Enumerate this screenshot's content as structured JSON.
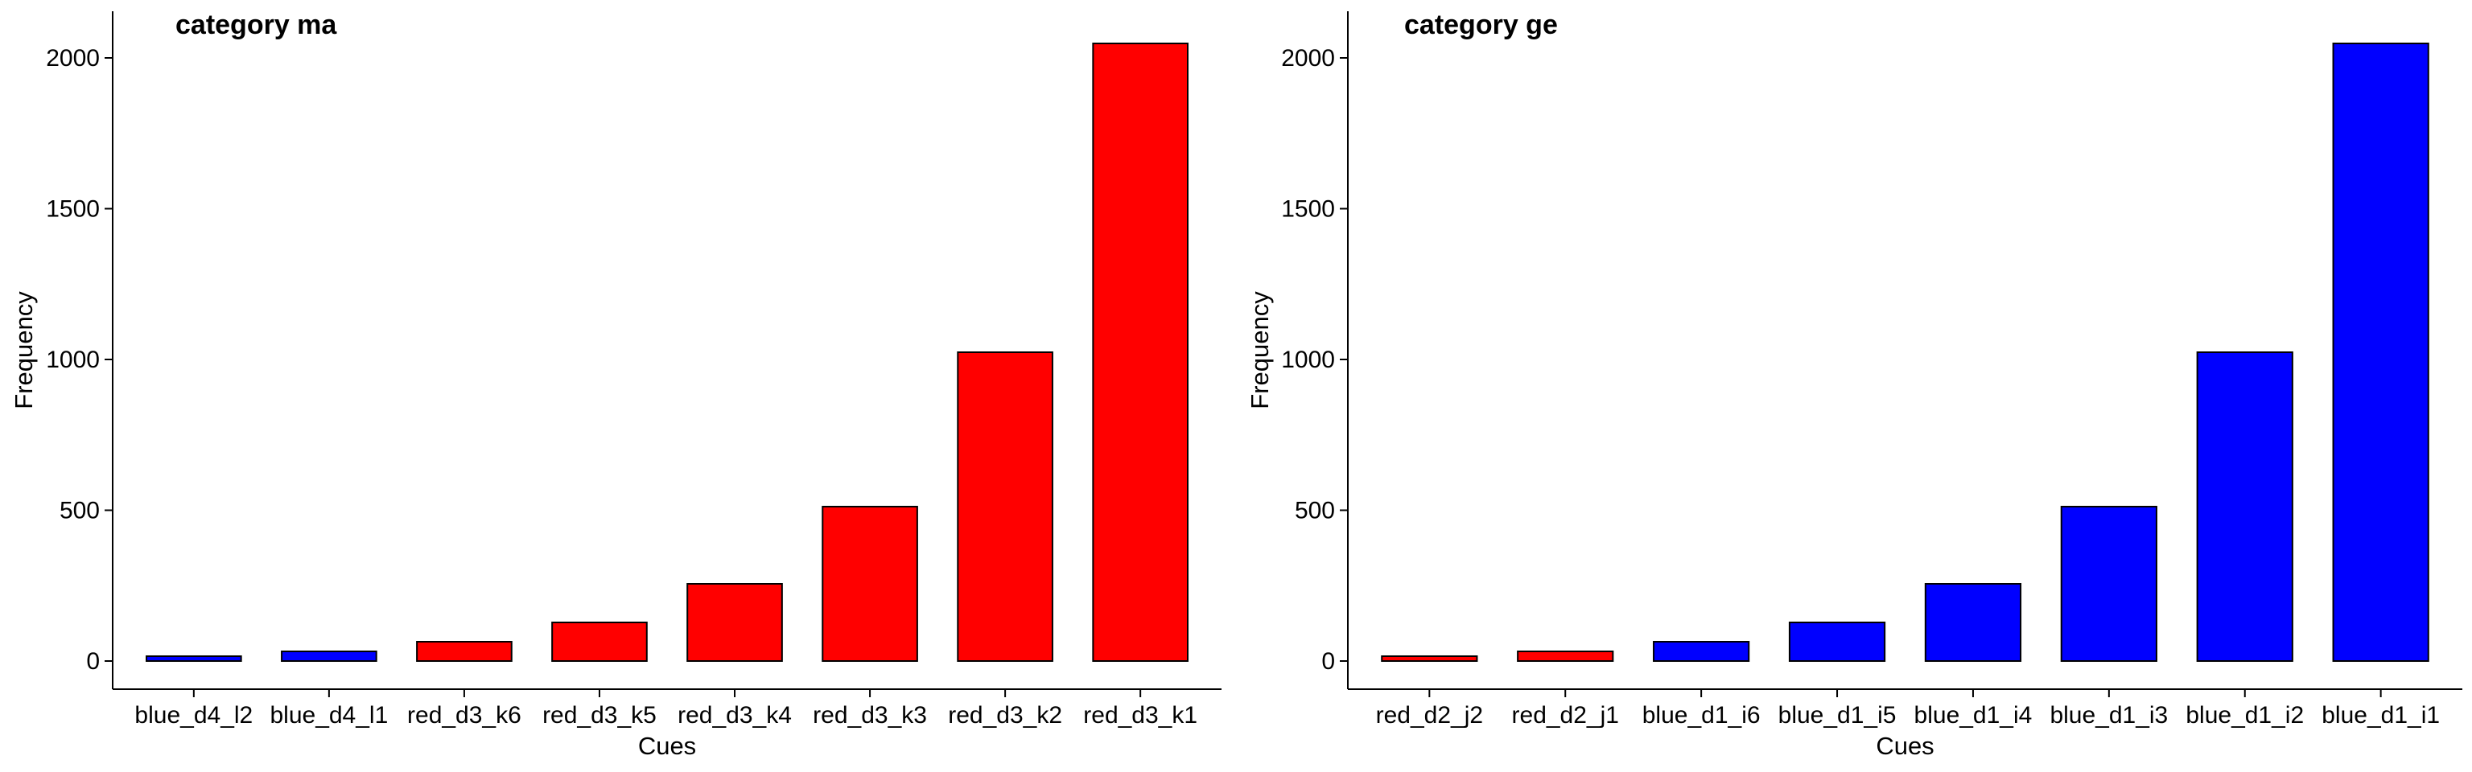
{
  "chart_data": [
    {
      "type": "bar",
      "title": "category ma",
      "xlabel": "Cues",
      "ylabel": "Frequency",
      "ylim": [
        0,
        2150
      ],
      "yticks": [
        0,
        500,
        1000,
        1500,
        2000
      ],
      "grid": false,
      "legend": "none",
      "categories": [
        "blue_d4_l2",
        "blue_d4_l1",
        "red_d3_k6",
        "red_d3_k5",
        "red_d3_k4",
        "red_d3_k3",
        "red_d3_k2",
        "red_d3_k1"
      ],
      "values": [
        16,
        32,
        64,
        128,
        256,
        512,
        1024,
        2048
      ],
      "bar_colors": [
        "#0000ff",
        "#0000ff",
        "#ff0000",
        "#ff0000",
        "#ff0000",
        "#ff0000",
        "#ff0000",
        "#ff0000"
      ]
    },
    {
      "type": "bar",
      "title": "category ge",
      "xlabel": "Cues",
      "ylabel": "Frequency",
      "ylim": [
        0,
        2150
      ],
      "yticks": [
        0,
        500,
        1000,
        1500,
        2000
      ],
      "grid": false,
      "legend": "none",
      "categories": [
        "red_d2_j2",
        "red_d2_j1",
        "blue_d1_i6",
        "blue_d1_i5",
        "blue_d1_i4",
        "blue_d1_i3",
        "blue_d1_i2",
        "blue_d1_i1"
      ],
      "values": [
        16,
        32,
        64,
        128,
        256,
        512,
        1024,
        2048
      ],
      "bar_colors": [
        "#ff0000",
        "#ff0000",
        "#0000ff",
        "#0000ff",
        "#0000ff",
        "#0000ff",
        "#0000ff",
        "#0000ff"
      ]
    }
  ],
  "colors": {
    "bar_outline": "#000000",
    "axis": "#000000"
  }
}
